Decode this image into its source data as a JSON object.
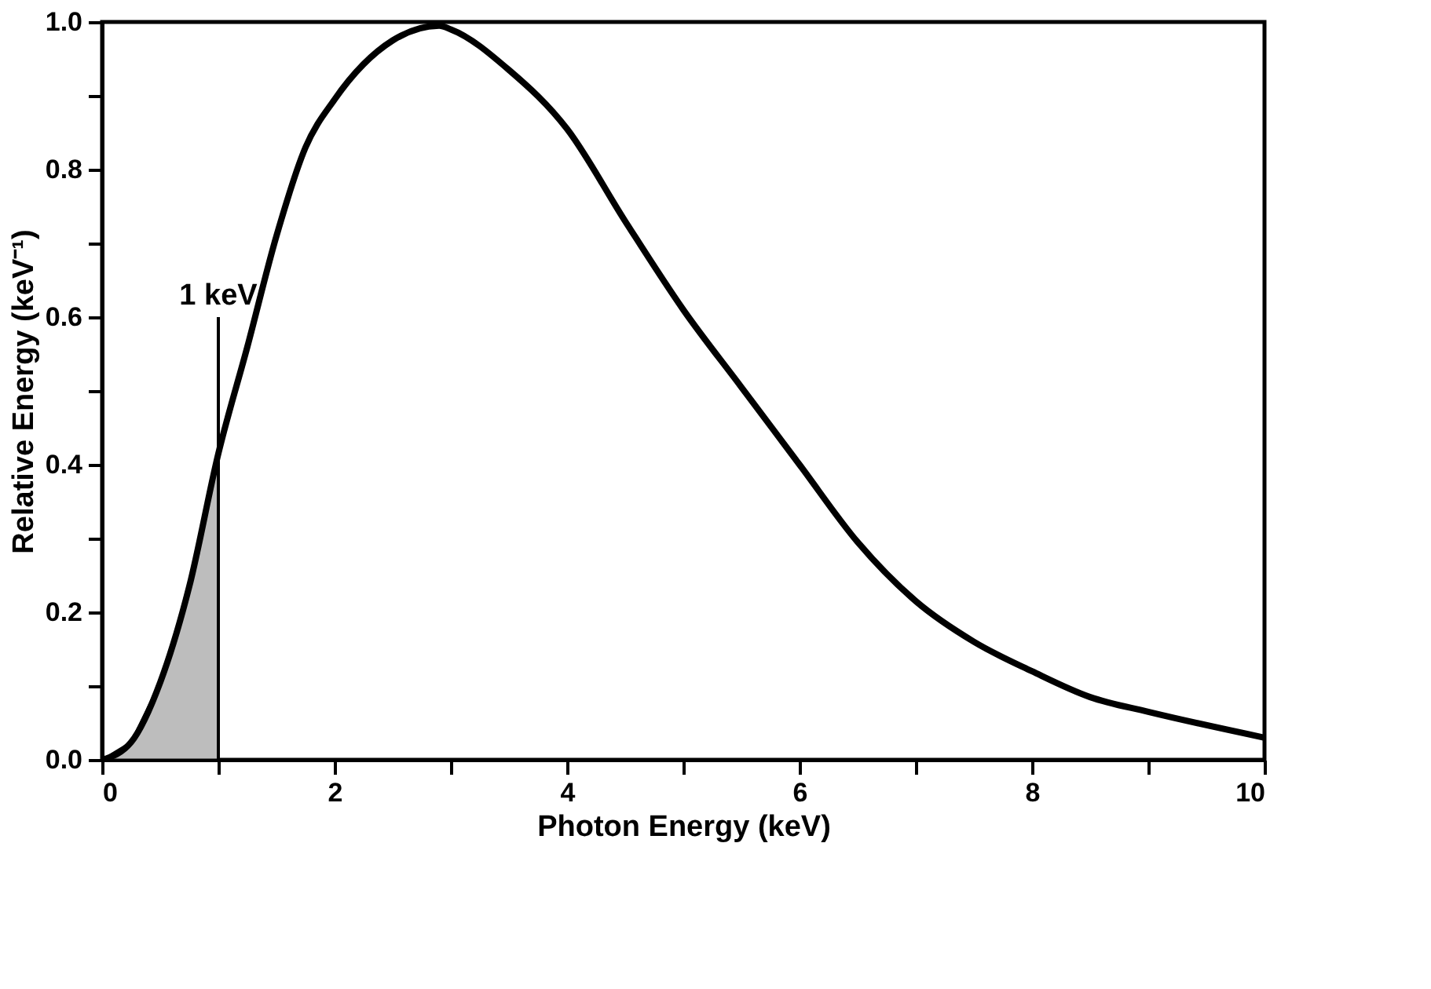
{
  "chart_data": {
    "type": "line",
    "xlabel": "Photon Energy  (keV)",
    "ylabel": "Relative Energy (keV⁻¹)",
    "xlim": [
      0,
      10
    ],
    "ylim": [
      0,
      1.0
    ],
    "xticks": [
      0,
      {
        "value": 1,
        "label": null
      },
      2,
      {
        "value": 3,
        "label": null
      },
      4,
      {
        "value": 5,
        "label": null
      },
      6,
      {
        "value": 7,
        "label": null
      },
      8,
      {
        "value": 9,
        "label": null
      },
      10
    ],
    "yticks": [
      {
        "value": 0,
        "label": "0.0"
      },
      {
        "value": 0.1,
        "label": null
      },
      {
        "value": 0.2,
        "label": "0.2"
      },
      {
        "value": 0.3,
        "label": null
      },
      {
        "value": 0.4,
        "label": "0.4"
      },
      {
        "value": 0.5,
        "label": null
      },
      {
        "value": 0.6,
        "label": "0.6"
      },
      {
        "value": 0.7,
        "label": null
      },
      {
        "value": 0.8,
        "label": "0.8"
      },
      {
        "value": 0.9,
        "label": null
      },
      {
        "value": 1.0,
        "label": "1.0"
      }
    ],
    "marker": "none",
    "line_style": "solid",
    "series": [
      {
        "type": "area",
        "color": "#bdbdbd",
        "x": [
          0,
          0.25,
          0.5,
          0.75,
          1
        ],
        "values": [
          0,
          0.024,
          0.105,
          0.235,
          0.415
        ]
      },
      {
        "color": "#000000",
        "x": [
          0,
          0.25,
          0.5,
          0.75,
          1,
          1.25,
          1.5,
          1.75,
          2,
          2.5,
          2.9,
          3,
          3.5,
          4,
          4.5,
          5,
          5.5,
          6,
          6.5,
          7,
          7.5,
          8,
          8.5,
          9,
          10
        ],
        "values": [
          0,
          0.024,
          0.105,
          0.235,
          0.415,
          0.56,
          0.71,
          0.83,
          0.895,
          0.975,
          0.995,
          0.99,
          0.935,
          0.855,
          0.73,
          0.61,
          0.505,
          0.4,
          0.295,
          0.215,
          0.16,
          0.12,
          0.085,
          0.065,
          0.03
        ]
      }
    ],
    "ref_lines": [
      {
        "axis": "x",
        "value": 1,
        "label": "1 keV",
        "color": "#000000"
      }
    ]
  }
}
